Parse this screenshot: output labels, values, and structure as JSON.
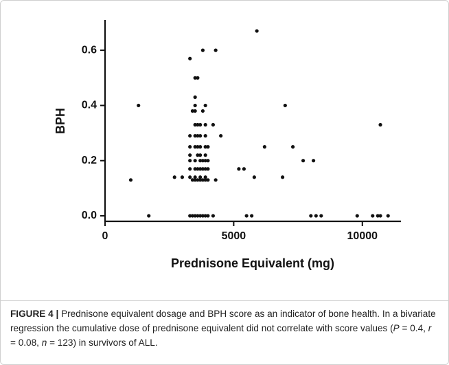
{
  "chart_data": {
    "type": "scatter",
    "x_label": "Prednisone Equivalent (mg)",
    "y_label": "BPH",
    "xlim": [
      0,
      11500
    ],
    "ylim": [
      -0.02,
      0.71
    ],
    "xticks": [
      0,
      5000,
      10000
    ],
    "yticks": [
      {
        "value": 0,
        "label": "0.0"
      },
      0.2,
      0.4,
      0.6
    ],
    "grid": false,
    "series": [
      {
        "color": "#111111",
        "x": [
          1000,
          1300,
          1700,
          2700,
          3000,
          3300,
          3800,
          4300,
          5900,
          7000,
          10700,
          6200,
          7300,
          7700,
          8100,
          4500,
          4200,
          5200,
          5400,
          5800,
          6900,
          5500,
          5700,
          8000,
          8200,
          8400,
          9800,
          10400,
          10600,
          10700,
          11000,
          4300,
          4200,
          3300,
          3300,
          3300,
          3300,
          3300,
          3300,
          3300,
          3400,
          3400,
          3400,
          3500,
          3500,
          3500,
          3500,
          3500,
          3500,
          3500,
          3500,
          3500,
          3500,
          3500,
          3500,
          3600,
          3600,
          3600,
          3600,
          3600,
          3600,
          3600,
          3600,
          3700,
          3700,
          3700,
          3700,
          3700,
          3700,
          3700,
          3700,
          3700,
          3800,
          3800,
          3800,
          3800,
          3800,
          3900,
          3900,
          3900,
          3900,
          3900,
          3900,
          3900,
          3900,
          3900,
          3900,
          4000,
          4000,
          4000,
          4000,
          4000
        ],
        "y": [
          0.13,
          0.4,
          0,
          0.14,
          0.14,
          0.57,
          0.6,
          0.6,
          0.67,
          0.4,
          0.33,
          0.25,
          0.25,
          0.2,
          0.2,
          0.29,
          0.33,
          0.17,
          0.17,
          0.14,
          0.14,
          0,
          0,
          0,
          0,
          0,
          0,
          0,
          0,
          0,
          0,
          0.13,
          0,
          0,
          0.14,
          0.17,
          0.2,
          0.22,
          0.25,
          0.29,
          0,
          0.13,
          0.38,
          0,
          0.13,
          0.14,
          0.17,
          0.2,
          0.25,
          0.29,
          0.33,
          0.38,
          0.4,
          0.43,
          0.5,
          0,
          0.13,
          0.17,
          0.22,
          0.25,
          0.29,
          0.33,
          0.5,
          0,
          0.13,
          0.14,
          0.17,
          0.2,
          0.22,
          0.25,
          0.29,
          0.33,
          0,
          0.13,
          0.17,
          0.2,
          0.38,
          0,
          0.13,
          0.14,
          0.17,
          0.2,
          0.22,
          0.25,
          0.29,
          0.33,
          0.4,
          0,
          0.13,
          0.17,
          0.2,
          0.25
        ]
      }
    ]
  },
  "caption": {
    "label": "FIGURE 4 |",
    "parts": [
      "Prednisone equivalent dosage and BPH score as an indicator of bone health. In a bivariate regression the cumulative dose of prednisone equivalent did not correlate with score values (",
      "P",
      " = 0.4, ",
      "r",
      " = 0.08, ",
      "n",
      " = 123) in survivors of ALL."
    ]
  }
}
